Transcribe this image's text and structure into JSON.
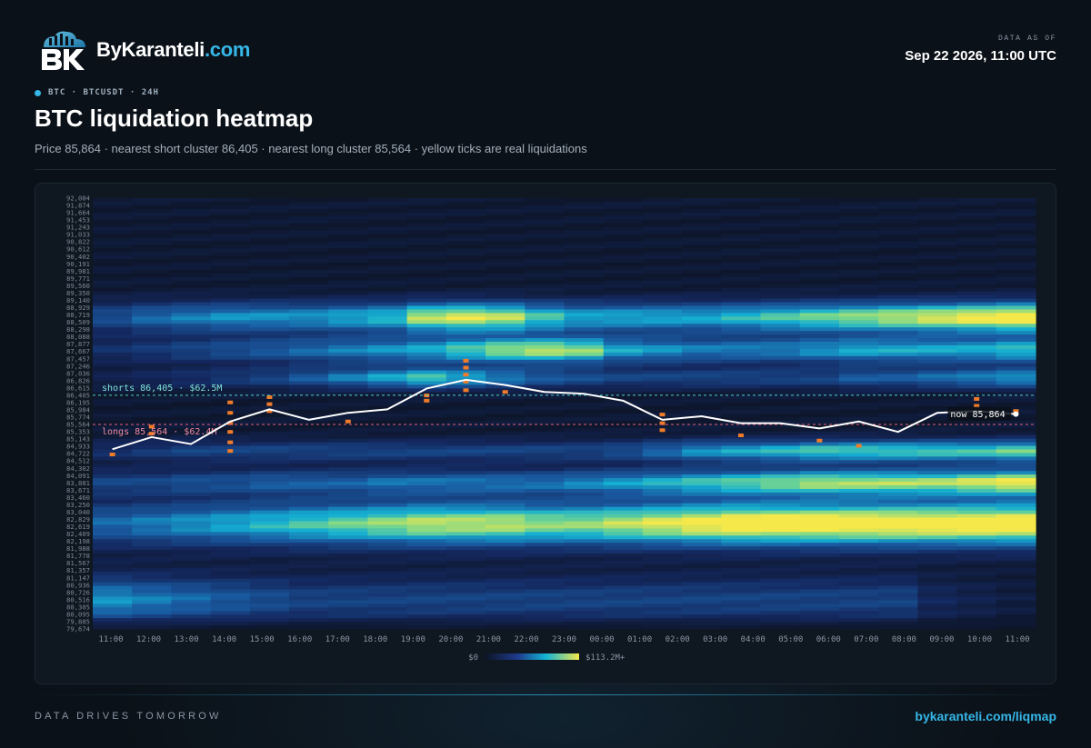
{
  "brand": {
    "name": "ByKaranteli",
    "tld": ".com"
  },
  "asof": {
    "label": "DATA AS OF",
    "value": "Sep 22 2026, 11:00 UTC"
  },
  "tag": "BTC · BTCUSDT · 24H",
  "title": "BTC liquidation heatmap",
  "subtitle": "Price 85,864 · nearest short cluster 86,405 · nearest long cluster 85,564 · yellow ticks are real liquidations",
  "footer": {
    "left": "DATA DRIVES TOMORROW",
    "right": "bykaranteli.com/liqmap"
  },
  "colors": {
    "accent": "#35b7e8",
    "shorts_line": "#4fd1c5",
    "longs_line": "#e0607a",
    "tick": "#f07c2a",
    "price_line": "#ffffff"
  },
  "chart_data": {
    "type": "heatmap",
    "ylim": [
      79674,
      92084
    ],
    "y_ticks": [
      "92,084",
      "91,874",
      "91,664",
      "91,453",
      "91,243",
      "91,033",
      "90,822",
      "90,612",
      "90,402",
      "90,191",
      "89,981",
      "89,771",
      "89,560",
      "89,350",
      "89,140",
      "88,929",
      "88,719",
      "88,509",
      "88,298",
      "88,088",
      "87,877",
      "87,667",
      "87,457",
      "87,246",
      "87,036",
      "86,826",
      "86,615",
      "86,405",
      "86,195",
      "85,984",
      "85,774",
      "85,564",
      "85,353",
      "85,143",
      "84,933",
      "84,722",
      "84,512",
      "84,302",
      "84,091",
      "83,881",
      "83,671",
      "83,460",
      "83,250",
      "83,040",
      "82,829",
      "82,619",
      "82,409",
      "82,198",
      "81,988",
      "81,778",
      "81,567",
      "81,357",
      "81,147",
      "80,936",
      "80,726",
      "80,516",
      "80,305",
      "80,095",
      "79,885",
      "79,674"
    ],
    "x_ticks": [
      "11:00",
      "12:00",
      "13:00",
      "14:00",
      "15:00",
      "16:00",
      "17:00",
      "18:00",
      "19:00",
      "20:00",
      "21:00",
      "22:00",
      "23:00",
      "00:00",
      "01:00",
      "02:00",
      "03:00",
      "04:00",
      "05:00",
      "06:00",
      "07:00",
      "08:00",
      "09:00",
      "10:00",
      "11:00"
    ],
    "price": [
      84850,
      85200,
      85000,
      85650,
      86000,
      85700,
      85900,
      86000,
      86600,
      86850,
      86700,
      86500,
      86450,
      86250,
      85700,
      85800,
      85600,
      85600,
      85450,
      85650,
      85350,
      85900,
      85950,
      85864
    ],
    "bands": [
      {
        "center": 88650,
        "width": 450,
        "peak": [
          0.35,
          0.45,
          0.5,
          0.55,
          0.55,
          0.55,
          0.6,
          0.65,
          0.85,
          0.9,
          0.85,
          0.7,
          0.6,
          0.6,
          0.6,
          0.6,
          0.65,
          0.7,
          0.75,
          0.8,
          0.85,
          0.9,
          0.95,
          1.0
        ]
      },
      {
        "center": 87700,
        "width": 380,
        "peak": [
          0.2,
          0.25,
          0.3,
          0.35,
          0.4,
          0.45,
          0.5,
          0.55,
          0.6,
          0.7,
          0.8,
          0.85,
          0.8,
          0.6,
          0.55,
          0.5,
          0.5,
          0.5,
          0.55,
          0.6,
          0.6,
          0.6,
          0.6,
          0.65
        ]
      },
      {
        "center": 86900,
        "width": 300,
        "peak": [
          0.1,
          0.15,
          0.2,
          0.25,
          0.3,
          0.4,
          0.5,
          0.6,
          0.7,
          0.6,
          0.5,
          0.4,
          0.35,
          0.3,
          0.3,
          0.3,
          0.3,
          0.3,
          0.3,
          0.4,
          0.4,
          0.45,
          0.5,
          0.55
        ]
      },
      {
        "center": 84800,
        "width": 320,
        "peak": [
          0.2,
          0.25,
          0.3,
          0.3,
          0.3,
          0.3,
          0.3,
          0.3,
          0.3,
          0.3,
          0.3,
          0.3,
          0.3,
          0.35,
          0.45,
          0.55,
          0.6,
          0.65,
          0.7,
          0.7,
          0.7,
          0.7,
          0.7,
          0.75
        ]
      },
      {
        "center": 83900,
        "width": 380,
        "peak": [
          0.3,
          0.3,
          0.35,
          0.35,
          0.4,
          0.4,
          0.4,
          0.45,
          0.45,
          0.45,
          0.45,
          0.45,
          0.5,
          0.55,
          0.6,
          0.65,
          0.7,
          0.75,
          0.8,
          0.8,
          0.8,
          0.8,
          0.85,
          0.9
        ]
      },
      {
        "center": 82700,
        "width": 650,
        "peak": [
          0.45,
          0.5,
          0.55,
          0.6,
          0.65,
          0.7,
          0.75,
          0.8,
          0.85,
          0.85,
          0.85,
          0.8,
          0.8,
          0.85,
          0.9,
          0.95,
          1.0,
          1.0,
          1.0,
          1.0,
          1.0,
          1.0,
          1.0,
          1.0
        ]
      },
      {
        "center": 80500,
        "width": 700,
        "peak": [
          0.55,
          0.5,
          0.45,
          0.4,
          0.35,
          0.3,
          0.3,
          0.3,
          0.3,
          0.3,
          0.3,
          0.3,
          0.3,
          0.3,
          0.3,
          0.3,
          0.3,
          0.3,
          0.3,
          0.3,
          0.3,
          0.15,
          0.1,
          0.05
        ]
      }
    ],
    "liq_ticks": [
      [
        0,
        84700
      ],
      [
        1,
        85500
      ],
      [
        1,
        85300
      ],
      [
        3,
        86200
      ],
      [
        3,
        85900
      ],
      [
        3,
        85600
      ],
      [
        3,
        85350
      ],
      [
        3,
        85050
      ],
      [
        3,
        84800
      ],
      [
        4,
        86350
      ],
      [
        4,
        86150
      ],
      [
        4,
        85950
      ],
      [
        6,
        85650
      ],
      [
        8,
        86400
      ],
      [
        8,
        86250
      ],
      [
        9,
        87400
      ],
      [
        9,
        87200
      ],
      [
        9,
        87000
      ],
      [
        9,
        86800
      ],
      [
        9,
        86550
      ],
      [
        10,
        86500
      ],
      [
        14,
        85850
      ],
      [
        14,
        85600
      ],
      [
        14,
        85400
      ],
      [
        16,
        85250
      ],
      [
        18,
        85100
      ],
      [
        19,
        84950
      ],
      [
        22,
        86300
      ],
      [
        22,
        86100
      ],
      [
        23,
        85950
      ]
    ],
    "shorts": {
      "label": "shorts 86,405 · $62.5M",
      "value": 86405
    },
    "longs": {
      "label": "longs 85,564 · $62.4M",
      "value": 85564
    },
    "now_label": "now 85,864",
    "legend": {
      "min": "$0",
      "max": "$113.2M+"
    }
  }
}
